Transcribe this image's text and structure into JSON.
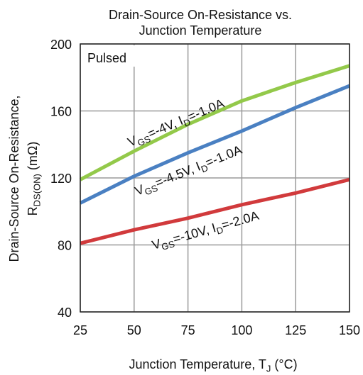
{
  "chart_data": {
    "type": "line",
    "title": [
      "Drain-Source On-Resistance vs.",
      "Junction Temperature"
    ],
    "x_label": [
      "Junction Temperature, T",
      "J",
      " (°C)"
    ],
    "y_label": [
      "Drain-Source On-Resistance,",
      "R",
      "DS(ON)",
      " (mΩ)"
    ],
    "annotation": "Pulsed",
    "x": [
      25,
      50,
      75,
      100,
      125,
      150
    ],
    "series": [
      {
        "name": [
          "V",
          "GS",
          "=-4V, I",
          "D",
          "=-1.0A"
        ],
        "color": "#93c94a",
        "values": [
          119,
          136,
          152,
          166,
          177,
          187
        ]
      },
      {
        "name": [
          "V",
          "GS",
          "=-4.5V, I",
          "D",
          "=-1.0A"
        ],
        "color": "#4a80c2",
        "values": [
          105,
          121,
          135,
          148,
          162,
          175
        ]
      },
      {
        "name": [
          "V",
          "GS",
          "=-10V, I",
          "D",
          "=-2.0A"
        ],
        "color": "#d13a3c",
        "values": [
          81,
          89,
          96,
          104,
          111,
          119
        ]
      }
    ],
    "xlim": [
      25,
      150
    ],
    "xticks": [
      25,
      50,
      75,
      100,
      125,
      150
    ],
    "ylim": [
      40,
      200
    ],
    "yticks": [
      40,
      80,
      120,
      160,
      200
    ],
    "grid": true
  }
}
